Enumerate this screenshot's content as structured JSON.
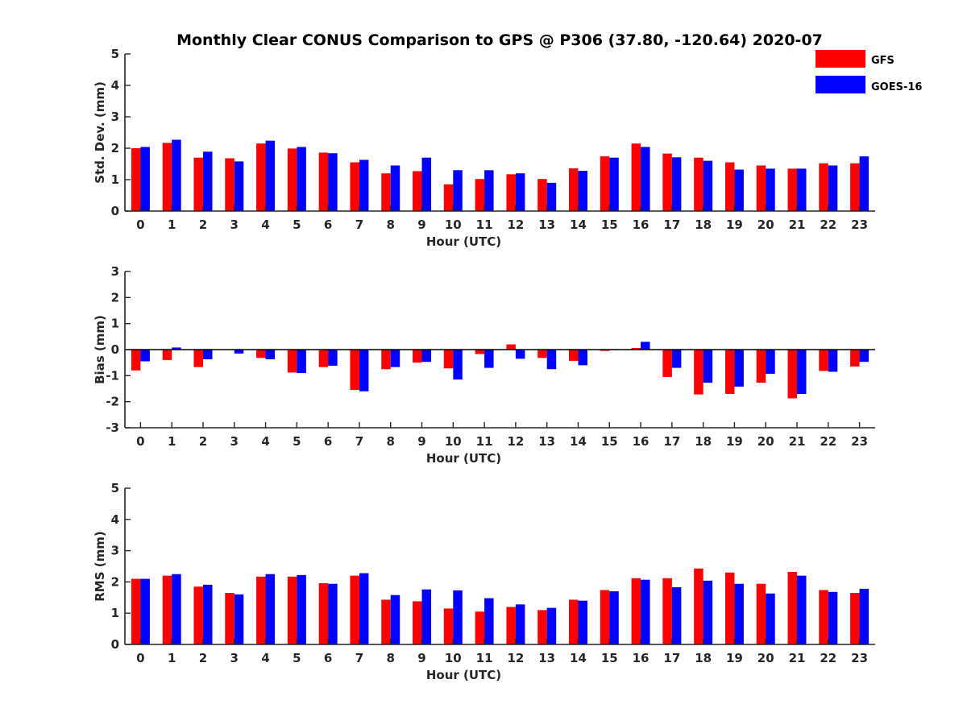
{
  "title": "Monthly Clear CONUS Comparison to GPS @ P306 (37.80, -120.64) 2020-07",
  "legend": [
    {
      "name": "GFS",
      "color": "#ff0000"
    },
    {
      "name": "GOES-16",
      "color": "#0000ff"
    }
  ],
  "chart_data": [
    {
      "type": "bar",
      "xlabel": "Hour (UTC)",
      "ylabel": "Std. Dev. (mm)",
      "ylim": [
        0,
        5
      ],
      "yticks": [
        0,
        1,
        2,
        3,
        4,
        5
      ],
      "categories": [
        "0",
        "1",
        "2",
        "3",
        "4",
        "5",
        "6",
        "7",
        "8",
        "9",
        "10",
        "11",
        "12",
        "13",
        "14",
        "15",
        "16",
        "17",
        "18",
        "19",
        "20",
        "21",
        "22",
        "23"
      ],
      "series": [
        {
          "name": "GFS",
          "values": [
            2.0,
            2.17,
            1.7,
            1.68,
            2.15,
            1.99,
            1.86,
            1.55,
            1.2,
            1.27,
            0.85,
            1.02,
            1.17,
            1.02,
            1.36,
            1.74,
            2.15,
            1.83,
            1.7,
            1.55,
            1.45,
            1.35,
            1.52,
            1.52
          ]
        },
        {
          "name": "GOES-16",
          "values": [
            2.04,
            2.27,
            1.89,
            1.58,
            2.24,
            2.04,
            1.84,
            1.63,
            1.45,
            1.7,
            1.3,
            1.3,
            1.2,
            0.9,
            1.28,
            1.7,
            2.04,
            1.71,
            1.6,
            1.32,
            1.35,
            1.35,
            1.45,
            1.74
          ]
        }
      ]
    },
    {
      "type": "bar",
      "xlabel": "Hour (UTC)",
      "ylabel": "Bias (mm)",
      "ylim": [
        -3,
        3
      ],
      "yticks": [
        -3,
        -2,
        -1,
        0,
        1,
        2,
        3
      ],
      "categories": [
        "0",
        "1",
        "2",
        "3",
        "4",
        "5",
        "6",
        "7",
        "8",
        "9",
        "10",
        "11",
        "12",
        "13",
        "14",
        "15",
        "16",
        "17",
        "18",
        "19",
        "20",
        "21",
        "22",
        "23"
      ],
      "series": [
        {
          "name": "GFS",
          "values": [
            -0.8,
            -0.4,
            -0.67,
            0.0,
            -0.32,
            -0.88,
            -0.67,
            -1.55,
            -0.75,
            -0.5,
            -0.72,
            -0.17,
            0.2,
            -0.32,
            -0.43,
            -0.05,
            0.06,
            -1.05,
            -1.72,
            -1.7,
            -1.27,
            -1.87,
            -0.82,
            -0.65
          ]
        },
        {
          "name": "GOES-16",
          "values": [
            -0.45,
            0.08,
            -0.37,
            -0.15,
            -0.37,
            -0.9,
            -0.62,
            -1.6,
            -0.67,
            -0.47,
            -1.15,
            -0.7,
            -0.35,
            -0.75,
            -0.6,
            0.02,
            0.3,
            -0.7,
            -1.27,
            -1.42,
            -0.93,
            -1.7,
            -0.85,
            -0.47
          ]
        }
      ]
    },
    {
      "type": "bar",
      "xlabel": "Hour (UTC)",
      "ylabel": "RMS (mm)",
      "ylim": [
        0,
        5
      ],
      "yticks": [
        0,
        1,
        2,
        3,
        4,
        5
      ],
      "categories": [
        "0",
        "1",
        "2",
        "3",
        "4",
        "5",
        "6",
        "7",
        "8",
        "9",
        "10",
        "11",
        "12",
        "13",
        "14",
        "15",
        "16",
        "17",
        "18",
        "19",
        "20",
        "21",
        "22",
        "23"
      ],
      "series": [
        {
          "name": "GFS",
          "values": [
            2.1,
            2.2,
            1.85,
            1.65,
            2.17,
            2.17,
            1.96,
            2.2,
            1.43,
            1.38,
            1.15,
            1.05,
            1.2,
            1.1,
            1.43,
            1.74,
            2.12,
            2.12,
            2.43,
            2.3,
            1.94,
            2.32,
            1.74,
            1.65
          ]
        },
        {
          "name": "GOES-16",
          "values": [
            2.1,
            2.25,
            1.91,
            1.6,
            2.25,
            2.22,
            1.94,
            2.28,
            1.58,
            1.76,
            1.73,
            1.48,
            1.28,
            1.17,
            1.4,
            1.7,
            2.07,
            1.83,
            2.04,
            1.94,
            1.63,
            2.2,
            1.68,
            1.78
          ]
        }
      ]
    }
  ]
}
